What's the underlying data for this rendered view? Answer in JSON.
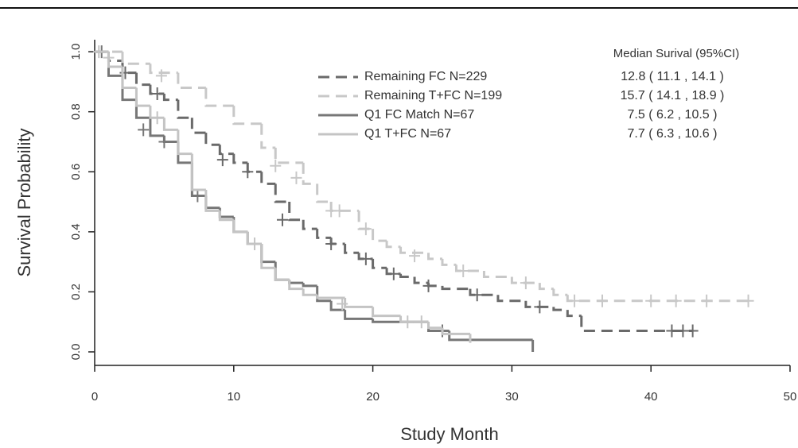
{
  "chart_data": {
    "type": "step",
    "xlabel": "Study Month",
    "ylabel": "Survival Probability",
    "legend_title": "Median Surival (95%CI)",
    "xlim": [
      0,
      50
    ],
    "ylim": [
      -0.045,
      1.04
    ],
    "xticks": [
      0,
      10,
      20,
      30,
      40,
      50
    ],
    "yticks": [
      {
        "value": 0,
        "label": "0.0"
      },
      0.2,
      0.4,
      0.6,
      0.8,
      {
        "value": 1,
        "label": "1.0"
      }
    ],
    "series": [
      {
        "name": "Remaining FC N=229",
        "median_ci": "12.8 ( 11.1 , 14.1 )",
        "color": "#6a6a6a",
        "dashed": true,
        "x": [
          0,
          1,
          2,
          3,
          4,
          5,
          6,
          7,
          8,
          9,
          10,
          11,
          12,
          13,
          14,
          15,
          16,
          17,
          18,
          19,
          20,
          21,
          22,
          23,
          24,
          25,
          27,
          29,
          31,
          33,
          34,
          35,
          43
        ],
        "values": [
          1.0,
          0.97,
          0.93,
          0.89,
          0.86,
          0.84,
          0.78,
          0.73,
          0.69,
          0.66,
          0.63,
          0.6,
          0.56,
          0.5,
          0.44,
          0.41,
          0.38,
          0.36,
          0.33,
          0.31,
          0.28,
          0.26,
          0.25,
          0.23,
          0.22,
          0.21,
          0.19,
          0.17,
          0.15,
          0.14,
          0.12,
          0.07,
          0.07
        ],
        "censor_x": [
          2.2,
          4.5,
          9.2,
          11,
          13.5,
          17,
          19.5,
          21.5,
          24,
          27.5,
          32,
          41.5,
          42.3,
          43
        ],
        "censor_y": [
          0.93,
          0.86,
          0.64,
          0.6,
          0.44,
          0.36,
          0.31,
          0.26,
          0.22,
          0.19,
          0.15,
          0.07,
          0.07,
          0.07
        ]
      },
      {
        "name": "Remaining T+FC N=199",
        "median_ci": "15.7 ( 14.1 , 18.9 )",
        "color": "#c8c8c8",
        "dashed": true,
        "x": [
          0,
          2,
          4,
          6,
          8,
          10,
          12,
          13,
          15,
          16,
          17,
          19,
          20,
          21,
          22,
          24,
          25,
          26,
          28,
          30,
          32,
          33,
          34,
          47
        ],
        "values": [
          1.0,
          0.96,
          0.93,
          0.88,
          0.82,
          0.76,
          0.68,
          0.63,
          0.56,
          0.5,
          0.47,
          0.41,
          0.37,
          0.35,
          0.33,
          0.31,
          0.29,
          0.27,
          0.25,
          0.23,
          0.21,
          0.19,
          0.17,
          0.17
        ],
        "censor_x": [
          1,
          4.8,
          13,
          14.5,
          17,
          17.6,
          19.5,
          23,
          26.5,
          31,
          34.5,
          36.5,
          40,
          41.8,
          44,
          47
        ],
        "censor_y": [
          0.98,
          0.92,
          0.62,
          0.58,
          0.47,
          0.47,
          0.41,
          0.32,
          0.27,
          0.23,
          0.17,
          0.17,
          0.17,
          0.17,
          0.17,
          0.17
        ]
      },
      {
        "name": "Q1 FC Match N=67",
        "median_ci": "7.5 ( 6.2 , 10.5 )",
        "color": "#777777",
        "dashed": false,
        "x": [
          0,
          1,
          2,
          3,
          4,
          5,
          6,
          7,
          8,
          9,
          10,
          11,
          12,
          13,
          14,
          15,
          16,
          17,
          18,
          20,
          24,
          25.5,
          31.5
        ],
        "values": [
          1.0,
          0.92,
          0.84,
          0.78,
          0.72,
          0.7,
          0.63,
          0.52,
          0.48,
          0.45,
          0.4,
          0.36,
          0.3,
          0.24,
          0.23,
          0.22,
          0.17,
          0.14,
          0.11,
          0.1,
          0.07,
          0.04,
          0.0
        ],
        "censor_x": [
          0.5,
          3.5,
          5,
          7.4,
          25
        ],
        "censor_y": [
          1.0,
          0.74,
          0.7,
          0.52,
          0.07
        ]
      },
      {
        "name": "Q1 T+FC N=67",
        "median_ci": "7.7 ( 6.3 , 10.6 )",
        "color": "#c4c4c4",
        "dashed": false,
        "x": [
          0,
          1,
          2,
          3,
          4,
          5,
          6,
          7,
          8,
          9,
          10,
          11,
          12,
          13,
          14,
          15,
          16,
          18,
          20,
          22,
          24,
          25,
          27
        ],
        "values": [
          1.0,
          0.95,
          0.88,
          0.82,
          0.78,
          0.74,
          0.66,
          0.54,
          0.47,
          0.44,
          0.4,
          0.36,
          0.28,
          0.24,
          0.21,
          0.19,
          0.18,
          0.15,
          0.12,
          0.1,
          0.08,
          0.06,
          0.03
        ],
        "censor_x": [
          0.3,
          4.5,
          11.5,
          17.8,
          22.5,
          23.5
        ],
        "censor_y": [
          1.0,
          0.78,
          0.36,
          0.16,
          0.1,
          0.1
        ]
      }
    ]
  }
}
